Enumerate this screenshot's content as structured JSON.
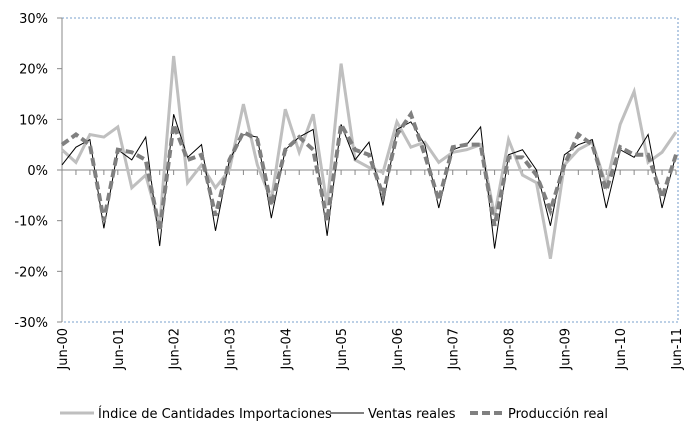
{
  "chart_data": {
    "type": "line",
    "categories": [
      "Jun-00",
      null,
      null,
      null,
      "Jun-01",
      null,
      null,
      null,
      "Jun-02",
      null,
      null,
      null,
      "Jun-03",
      null,
      null,
      null,
      "Jun-04",
      null,
      null,
      null,
      "Jun-05",
      null,
      null,
      null,
      "Jun-06",
      null,
      null,
      null,
      "Jun-07",
      null,
      null,
      null,
      "Jun-08",
      null,
      null,
      null,
      "Jun-09",
      null,
      null,
      null,
      "Jun-10",
      null,
      null,
      null,
      "Jun-11"
    ],
    "series": [
      {
        "name": "Índice de Cantidades Importaciones",
        "color": "#bfbfbf",
        "dash": "solid",
        "width": 3,
        "values": [
          4,
          1.5,
          7,
          6.5,
          8.5,
          -3.5,
          -1,
          -11,
          22.5,
          -2.5,
          1,
          -3.5,
          0,
          13,
          1,
          -6,
          12,
          3.5,
          11,
          -7,
          21,
          2,
          0.5,
          -0.5,
          9.5,
          4.5,
          5.5,
          1.5,
          3.5,
          4,
          5,
          -9,
          6,
          -1,
          -2.5,
          -17.5,
          1,
          4,
          5.5,
          -3,
          9,
          15.5,
          1.5,
          3.5,
          7.5
        ]
      },
      {
        "name": "Ventas reales",
        "color": "#000000",
        "dash": "solid",
        "width": 1,
        "values": [
          1,
          4.5,
          6,
          -11.5,
          4,
          2,
          6.5,
          -15,
          11,
          2.5,
          5,
          -12,
          2,
          7,
          6.5,
          -9.5,
          4,
          6.5,
          8,
          -13,
          9,
          2,
          5.5,
          -7,
          8,
          9.5,
          5,
          -7.5,
          4,
          5,
          8.5,
          -15.5,
          3,
          4,
          0,
          -11,
          3,
          5,
          6,
          -7.5,
          4,
          2.5,
          7,
          -7.5,
          3
        ]
      },
      {
        "name": "Producción real",
        "color": "#808080",
        "dash": "dashed",
        "width": 4,
        "values": [
          5,
          7,
          5,
          -10,
          4,
          3.5,
          2,
          -12,
          9,
          2,
          3,
          -9,
          2,
          7.5,
          6,
          -7,
          4,
          6.5,
          4,
          -10,
          9,
          4,
          3,
          -5,
          7,
          11,
          3,
          -6,
          4.5,
          5,
          5,
          -11,
          2.5,
          2.5,
          -1,
          -8,
          1,
          7,
          5,
          -4,
          4.5,
          3,
          3,
          -5.5,
          3
        ]
      }
    ],
    "ylim": [
      -30,
      30
    ],
    "yticks": [
      {
        "value": -30,
        "label": "-30%"
      },
      {
        "value": -20,
        "label": "-20%"
      },
      {
        "value": -10,
        "label": "-10%"
      },
      {
        "value": 0,
        "label": "0%"
      },
      {
        "value": 10,
        "label": "10%"
      },
      {
        "value": 20,
        "label": "20%"
      },
      {
        "value": 30,
        "label": "30%"
      }
    ],
    "legend": "bottom"
  }
}
